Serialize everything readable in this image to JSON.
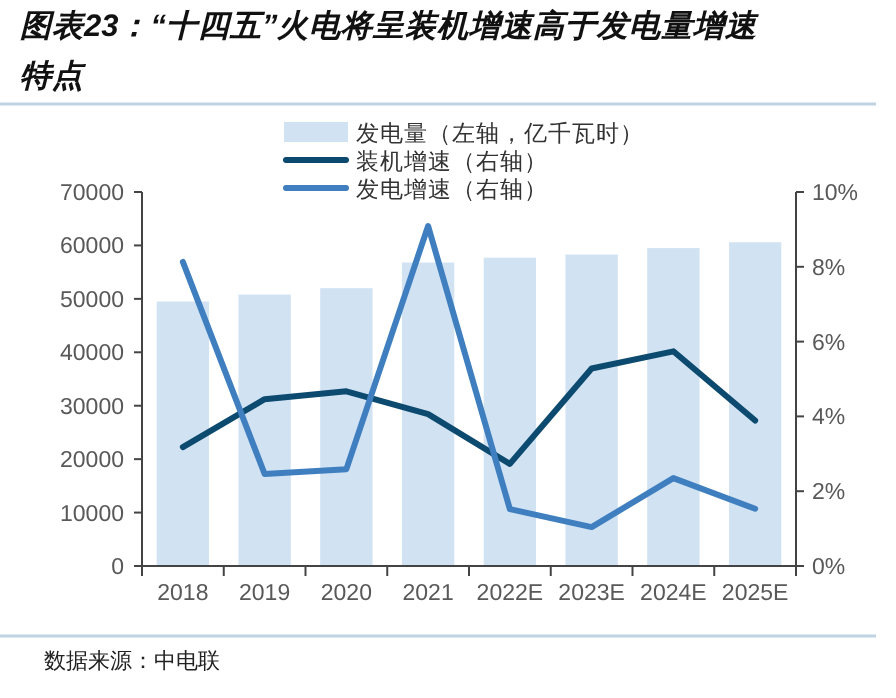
{
  "chart_data": {
    "type": "bar",
    "title": "图表23：“十四五”火电将呈装机增速高于发电量增速特点",
    "categories": [
      "2018",
      "2019",
      "2020",
      "2021",
      "2022E",
      "2023E",
      "2024E",
      "2025E"
    ],
    "series": [
      {
        "name": "发电量（左轴，亿千瓦时）",
        "color": "#d1e2f3",
        "values": [
          49500,
          50800,
          52000,
          56800,
          57700,
          58300,
          59500,
          60600
        ]
      },
      {
        "name": "装机增速（右轴）",
        "type": "line",
        "axis": "y2",
        "color": "#0d4a6f",
        "values": [
          3.18,
          4.46,
          4.67,
          4.06,
          2.73,
          5.28,
          5.74,
          3.89
        ]
      },
      {
        "name": "发电增速（右轴）",
        "type": "line",
        "axis": "y2",
        "color": "#3f7fc0",
        "values": [
          8.13,
          2.46,
          2.59,
          9.09,
          1.52,
          1.04,
          2.35,
          1.53
        ]
      }
    ],
    "ylim": [
      0,
      70000
    ],
    "yticks": [
      0,
      10000,
      20000,
      30000,
      40000,
      50000,
      60000,
      70000
    ],
    "y2lim": [
      0,
      10
    ],
    "y2ticks": [
      {
        "value": 0,
        "label": "0%"
      },
      {
        "value": 2,
        "label": "2%"
      },
      {
        "value": 4,
        "label": "4%"
      },
      {
        "value": 6,
        "label": "6%"
      },
      {
        "value": 8,
        "label": "8%"
      },
      {
        "value": 10,
        "label": "10%"
      }
    ],
    "legend": "top",
    "grid": false,
    "marker": "none",
    "line_style": "solid",
    "annotations": [
      "数据来源：中电联"
    ]
  }
}
